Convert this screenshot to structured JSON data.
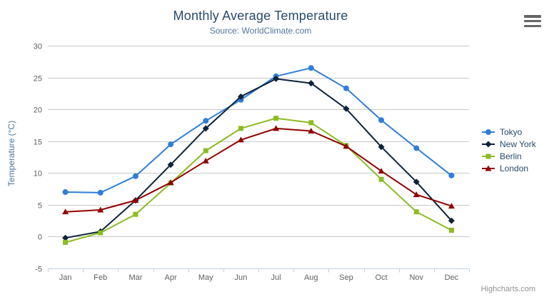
{
  "chart_data": {
    "type": "line",
    "title": "Monthly Average Temperature",
    "subtitle": "Source: WorldClimate.com",
    "xlabel": "",
    "ylabel": "Temperature (°C)",
    "categories": [
      "Jan",
      "Feb",
      "Mar",
      "Apr",
      "May",
      "Jun",
      "Jul",
      "Aug",
      "Sep",
      "Oct",
      "Nov",
      "Dec"
    ],
    "yticks": [
      -5,
      0,
      5,
      10,
      15,
      20,
      25,
      30
    ],
    "ylim": [
      -5,
      30
    ],
    "grid": true,
    "legend_position": "right",
    "series": [
      {
        "name": "Tokyo",
        "color": "#2f7ed8",
        "symbol": "circle",
        "values": [
          7.0,
          6.9,
          9.5,
          14.5,
          18.2,
          21.5,
          25.2,
          26.5,
          23.3,
          18.3,
          13.9,
          9.6
        ]
      },
      {
        "name": "New York",
        "color": "#0d233a",
        "symbol": "diamond",
        "values": [
          -0.2,
          0.8,
          5.7,
          11.3,
          17.0,
          22.0,
          24.8,
          24.1,
          20.1,
          14.1,
          8.6,
          2.5
        ]
      },
      {
        "name": "Berlin",
        "color": "#8bbc21",
        "symbol": "square",
        "values": [
          -0.9,
          0.6,
          3.5,
          8.4,
          13.5,
          17.0,
          18.6,
          17.9,
          14.3,
          9.0,
          3.9,
          1.0
        ]
      },
      {
        "name": "London",
        "color": "#910000",
        "symbol": "triangle",
        "values": [
          3.9,
          4.2,
          5.7,
          8.5,
          11.9,
          15.2,
          17.0,
          16.6,
          14.2,
          10.3,
          6.6,
          4.8
        ]
      }
    ]
  },
  "credits": {
    "label": "Highcharts.com"
  },
  "icons": {
    "context_menu": "hamburger-icon"
  },
  "colors": {
    "background": "#ffffff",
    "title": "#274b6d",
    "subtitle": "#4d759e",
    "axis_title": "#4d759e",
    "axis_label": "#606060",
    "legend_text": "#274b6d",
    "grid": "#c8c8c8",
    "axis_line": "#c0d0e0",
    "credits": "#909090",
    "menu_icon": "#666666"
  }
}
